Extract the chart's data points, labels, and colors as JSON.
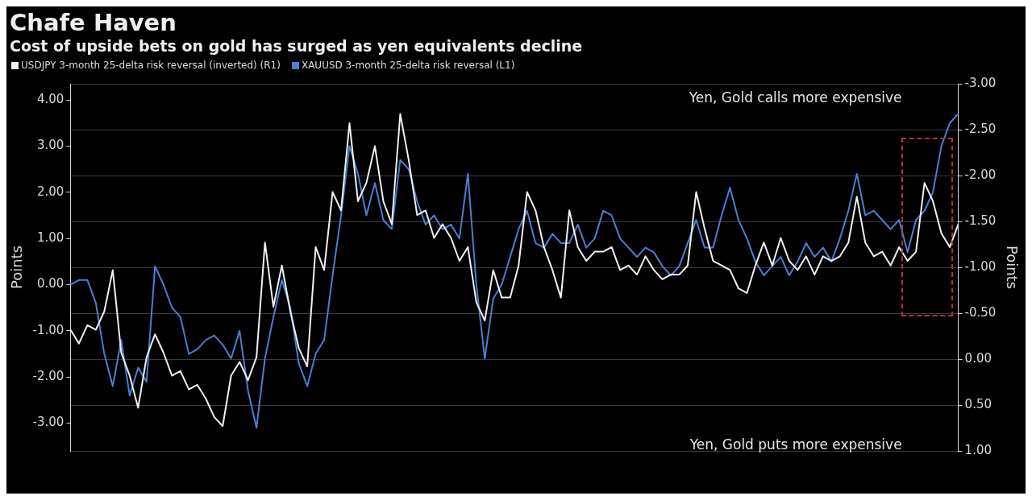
{
  "chart_data": {
    "type": "line",
    "title": "Chafe Haven",
    "subtitle": "Cost of upside bets on gold has surged as yen equivalents decline",
    "ylabel": "Points",
    "y2label": "Points",
    "annotations": [
      "Yen, Gold calls more expensive",
      "Yen, Gold puts more expensive"
    ],
    "categories": [
      null,
      null,
      null,
      null,
      null,
      null,
      null,
      null,
      null,
      null,
      null,
      null,
      null,
      null,
      null,
      null,
      null,
      null,
      null,
      null,
      null,
      null,
      null,
      null,
      null,
      null,
      null,
      null,
      null,
      null,
      null,
      null,
      null,
      null,
      null,
      null,
      null,
      null,
      null,
      null,
      null,
      null,
      null,
      null,
      null,
      null,
      null,
      null,
      null,
      null,
      null,
      null,
      null,
      null,
      null,
      null,
      null,
      null,
      null,
      null,
      null,
      null,
      null,
      null,
      null,
      null,
      null,
      null,
      null,
      null,
      null,
      null,
      null,
      null,
      null,
      null,
      null,
      null,
      null,
      null,
      null,
      null,
      null,
      null,
      null,
      null,
      null,
      null,
      null,
      null,
      null,
      null,
      null,
      null,
      null,
      null,
      null,
      null,
      null,
      null,
      null,
      null,
      null,
      null,
      null,
      null
    ],
    "series": [
      {
        "name": "USDJPY 3-month 25-delta risk reversal (inverted) (R1)",
        "color": "#f0f0f0",
        "axis": "y2",
        "values": [
          -0.32,
          -0.17,
          -0.37,
          -0.32,
          -0.52,
          -0.97,
          -0.07,
          0.18,
          0.53,
          -0.02,
          -0.27,
          -0.07,
          0.18,
          0.13,
          0.33,
          0.28,
          0.43,
          0.63,
          0.73,
          0.18,
          0.03,
          0.23,
          -0.02,
          -1.27,
          -0.57,
          -1.02,
          -0.52,
          -0.12,
          0.08,
          -1.22,
          -0.97,
          -1.82,
          -1.62,
          -2.57,
          -1.72,
          -1.92,
          -2.32,
          -1.72,
          -1.47,
          -2.67,
          -2.17,
          -1.57,
          -1.62,
          -1.32,
          -1.47,
          -1.32,
          -1.07,
          -1.22,
          -0.62,
          -0.42,
          -0.97,
          -0.67,
          -0.67,
          -1.02,
          -1.82,
          -1.62,
          -1.22,
          -0.97,
          -0.67,
          -1.62,
          -1.22,
          -1.07,
          -1.17,
          -1.17,
          -1.22,
          -0.97,
          -1.02,
          -0.92,
          -1.12,
          -0.97,
          -0.87,
          -0.92,
          -0.92,
          -1.02,
          -1.82,
          -1.42,
          -1.07,
          -1.02,
          -0.97,
          -0.77,
          -0.72,
          -1.02,
          -1.27,
          -1.02,
          -1.32,
          -1.07,
          -0.97,
          -1.12,
          -0.92,
          -1.12,
          -1.07,
          -1.12,
          -1.27,
          -1.77,
          -1.27,
          -1.12,
          -1.17,
          -1.02,
          -1.22,
          -1.07,
          -1.17,
          -1.92,
          -1.72,
          -1.37,
          -1.22,
          -1.47
        ]
      },
      {
        "name": "XAUUSD 3-month 25-delta risk reversal (L1)",
        "color": "#4a7fd0",
        "values": [
          0.0,
          0.1,
          0.1,
          -0.4,
          -1.5,
          -2.2,
          -1.2,
          -2.4,
          -1.8,
          -2.1,
          0.4,
          0.0,
          -0.5,
          -0.7,
          -1.5,
          -1.4,
          -1.2,
          -1.1,
          -1.3,
          -1.6,
          -1.0,
          -2.3,
          -3.1,
          -1.6,
          -0.7,
          0.1,
          -0.5,
          -1.7,
          -2.2,
          -1.5,
          -1.2,
          0.2,
          1.5,
          3.0,
          2.4,
          1.5,
          2.2,
          1.4,
          1.2,
          2.7,
          2.5,
          1.8,
          1.3,
          1.5,
          1.2,
          1.3,
          1.0,
          2.4,
          0.0,
          -1.6,
          -0.3,
          0.0,
          0.6,
          1.2,
          1.6,
          0.9,
          0.8,
          1.1,
          0.9,
          0.9,
          1.3,
          0.8,
          1.0,
          1.6,
          1.5,
          1.0,
          0.8,
          0.6,
          0.8,
          0.7,
          0.4,
          0.2,
          0.4,
          0.9,
          1.4,
          0.8,
          0.8,
          1.5,
          2.1,
          1.4,
          1.0,
          0.5,
          0.2,
          0.4,
          0.6,
          0.2,
          0.5,
          0.9,
          0.6,
          0.8,
          0.5,
          1.0,
          1.6,
          2.4,
          1.5,
          1.6,
          1.4,
          1.2,
          1.4,
          0.7,
          1.4,
          1.6,
          2.0,
          3.0,
          3.5,
          3.7
        ]
      }
    ],
    "ylim": [
      -3.6,
      4.35
    ],
    "yticks": [
      {
        "value": -3,
        "label": "-3.00"
      },
      {
        "value": -2,
        "label": "-2.00"
      },
      {
        "value": -1,
        "label": "-1.00"
      },
      {
        "value": 0,
        "label": "0.00"
      },
      {
        "value": 1,
        "label": "1.00"
      },
      {
        "value": 2,
        "label": "2.00"
      },
      {
        "value": 3,
        "label": "3.00"
      },
      {
        "value": 4,
        "label": "4.00"
      }
    ],
    "y2lim": [
      1.0,
      -3.0
    ],
    "y2ticks": [
      {
        "value": -3,
        "label": "-3.00"
      },
      {
        "value": -2.5,
        "label": "-2.50"
      },
      {
        "value": -2,
        "label": "-2.00"
      },
      {
        "value": -1.5,
        "label": "-1.50"
      },
      {
        "value": -1,
        "label": "-1.00"
      },
      {
        "value": -0.5,
        "label": "-0.50"
      },
      {
        "value": 0,
        "label": "0.00"
      },
      {
        "value": 0.5,
        "label": "0.50"
      },
      {
        "value": 1,
        "label": "1.00"
      }
    ],
    "grid": "y",
    "legend": "top left",
    "marker": "none",
    "line_style": "solid"
  }
}
